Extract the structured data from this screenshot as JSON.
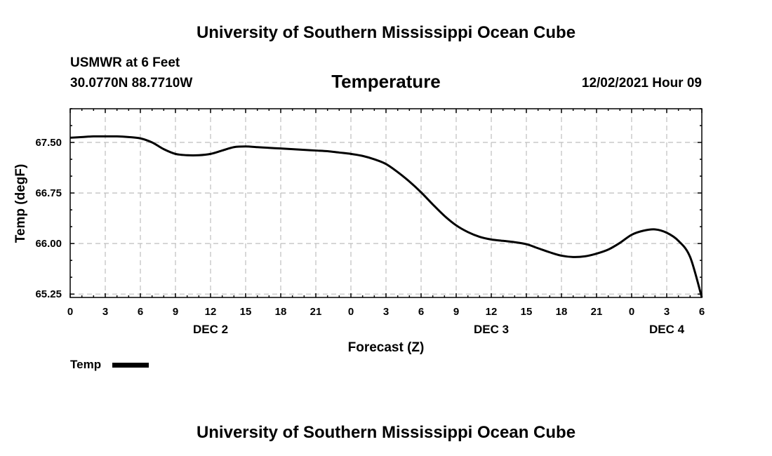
{
  "page": {
    "title_top": "University of Southern Mississippi Ocean Cube",
    "title_bottom": "University of Southern Mississippi Ocean Cube",
    "station": "USMWR at 6 Feet",
    "coords": "30.0770N  88.7710W",
    "timestamp": "12/02/2021 Hour 09"
  },
  "chart_data": {
    "type": "line",
    "title": "Temperature",
    "xlabel": "Forecast (Z)",
    "ylabel": "Temp (degF)",
    "x_range": [
      0,
      54
    ],
    "ylim": [
      65.2,
      68.0
    ],
    "y_ticks": [
      65.25,
      66.0,
      66.75,
      67.5
    ],
    "y_tick_labels": [
      "65.25",
      "66.00",
      "66.75",
      "67.50"
    ],
    "x_ticks": [
      0,
      3,
      6,
      9,
      12,
      15,
      18,
      21,
      24,
      27,
      30,
      33,
      36,
      39,
      42,
      45,
      48,
      51,
      54
    ],
    "x_tick_labels": [
      "0",
      "3",
      "6",
      "9",
      "12",
      "15",
      "18",
      "21",
      "0",
      "3",
      "6",
      "9",
      "12",
      "15",
      "18",
      "21",
      "0",
      "3",
      "6"
    ],
    "day_labels": [
      {
        "x": 12,
        "label": "DEC 2"
      },
      {
        "x": 36,
        "label": "DEC 3"
      },
      {
        "x": 51,
        "label": "DEC 4"
      }
    ],
    "grid": true,
    "legend_position": "bottom-left",
    "series": [
      {
        "name": "Temp",
        "color": "#000000",
        "x": [
          0,
          1,
          2,
          3,
          4,
          5,
          6,
          7,
          8,
          9,
          10,
          11,
          12,
          13,
          14,
          15,
          16,
          17,
          18,
          19,
          20,
          21,
          22,
          23,
          24,
          25,
          26,
          27,
          28,
          29,
          30,
          31,
          32,
          33,
          34,
          35,
          36,
          37,
          38,
          39,
          40,
          41,
          42,
          43,
          44,
          45,
          46,
          47,
          48,
          49,
          50,
          51,
          52,
          53,
          54
        ],
        "values": [
          67.57,
          67.58,
          67.59,
          67.59,
          67.59,
          67.58,
          67.56,
          67.5,
          67.4,
          67.33,
          67.31,
          67.31,
          67.33,
          67.38,
          67.43,
          67.44,
          67.43,
          67.42,
          67.41,
          67.4,
          67.39,
          67.38,
          67.37,
          67.35,
          67.33,
          67.3,
          67.25,
          67.18,
          67.06,
          66.92,
          66.76,
          66.58,
          66.41,
          66.27,
          66.17,
          66.1,
          66.06,
          66.04,
          66.02,
          65.99,
          65.93,
          65.87,
          65.82,
          65.8,
          65.81,
          65.85,
          65.91,
          66.01,
          66.13,
          66.19,
          66.21,
          66.16,
          66.04,
          65.8,
          65.2
        ]
      }
    ]
  }
}
